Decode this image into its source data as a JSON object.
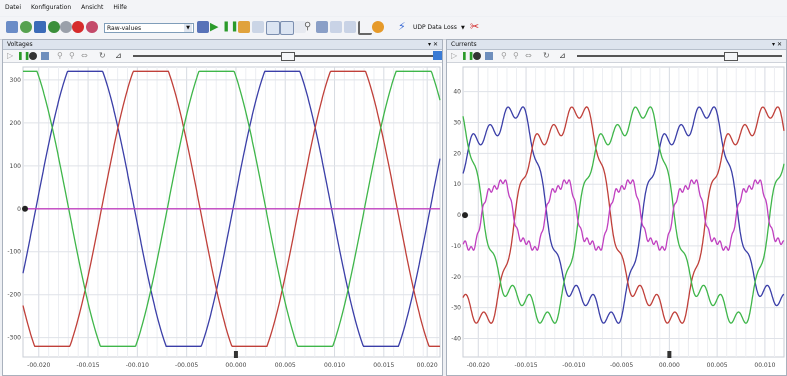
{
  "menu": [
    "Datei",
    "Konfiguration",
    "Ansicht",
    "Hilfe"
  ],
  "toolbar": {
    "mode_select": "Raw-values",
    "udp_label": "UDP Data Loss"
  },
  "panels": [
    {
      "title": "Voltages",
      "x_ticks": [
        "-00.020",
        "-00.015",
        "-00.010",
        "-00.005",
        "00.000",
        "00.005",
        "00.010",
        "00.015",
        "00.020"
      ],
      "y_ticks": [
        "300",
        "200",
        "100",
        "0",
        "-100",
        "-200",
        "-300"
      ]
    },
    {
      "title": "Currents",
      "x_ticks": [
        "-00.020",
        "-00.015",
        "-00.010",
        "-00.005",
        "00.000",
        "00.005",
        "00.010"
      ],
      "y_ticks": [
        "40",
        "30",
        "20",
        "10",
        "0",
        "-10",
        "-20",
        "-30",
        "-40"
      ]
    }
  ],
  "chart_data": [
    {
      "type": "line",
      "title": "Voltages",
      "xlim": [
        -0.0213,
        0.021
      ],
      "ylim": [
        -345,
        330
      ],
      "grid": true,
      "series": [
        {
          "color": "#3b3fa8",
          "amplitude": 320,
          "phase_deg": 0,
          "frequency_hz": 50,
          "shape": "trapezoid"
        },
        {
          "color": "#c0403a",
          "amplitude": 320,
          "phase_deg": -120,
          "frequency_hz": 50,
          "shape": "trapezoid"
        },
        {
          "color": "#3fb64a",
          "amplitude": 320,
          "phase_deg": 120,
          "frequency_hz": 50,
          "shape": "trapezoid"
        },
        {
          "color": "#c040c0",
          "amplitude": 0,
          "phase_deg": 0,
          "frequency_hz": 50,
          "shape": "flat"
        }
      ]
    },
    {
      "type": "line",
      "title": "Currents",
      "xlim": [
        -0.0213,
        0.0123
      ],
      "ylim": [
        -46,
        48
      ],
      "grid": true,
      "series": [
        {
          "color": "#3b3fa8",
          "amplitude": 40,
          "phase_deg": 40,
          "frequency_hz": 50,
          "shape": "noisy"
        },
        {
          "color": "#c0403a",
          "amplitude": 40,
          "phase_deg": -80,
          "frequency_hz": 50,
          "shape": "noisy"
        },
        {
          "color": "#3fb64a",
          "amplitude": 40,
          "phase_deg": 160,
          "frequency_hz": 50,
          "shape": "noisy"
        },
        {
          "color": "#c040c0",
          "amplitude": 13,
          "phase_deg": -40,
          "frequency_hz": 150,
          "shape": "noisy"
        }
      ]
    }
  ]
}
